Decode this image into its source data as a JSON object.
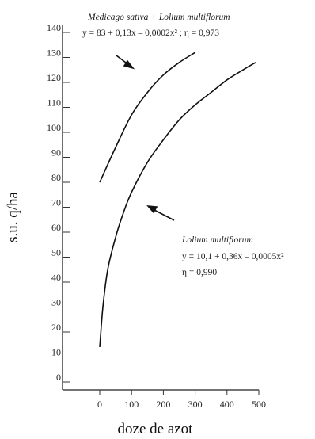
{
  "chart_data": {
    "type": "line",
    "title": "",
    "xlabel": "doze de azot",
    "ylabel": "s.u. q/ha",
    "xlim": [
      0,
      500
    ],
    "ylim": [
      0,
      140
    ],
    "x_ticks": [
      "0",
      "100",
      "200",
      "300",
      "400",
      "500"
    ],
    "y_ticks": [
      "0",
      "10",
      "20",
      "30",
      "40",
      "50",
      "60",
      "70",
      "80",
      "90",
      "100",
      "110",
      "120",
      "130",
      "140"
    ],
    "grid": false,
    "series": [
      {
        "name": "Medicago sativa + Lolium multiflorum",
        "equation": "y = 83 + 0,13x – 0,0002x² ; η = 0,973",
        "color": "#111111",
        "x": [
          0,
          50,
          100,
          150,
          200,
          250,
          300
        ],
        "y": [
          80,
          94,
          107,
          116,
          123,
          128,
          132
        ]
      },
      {
        "name": "Lolium multiflorum",
        "equation": "y = 10,1 + 0,36x – 0,0005x²",
        "eta": "η = 0,990",
        "color": "#111111",
        "x": [
          0,
          10,
          25,
          50,
          75,
          100,
          150,
          200,
          250,
          300,
          350,
          400,
          450,
          490
        ],
        "y": [
          14,
          30,
          45,
          58,
          68,
          76,
          88,
          97,
          105,
          111,
          116,
          121,
          125,
          128
        ]
      }
    ]
  }
}
